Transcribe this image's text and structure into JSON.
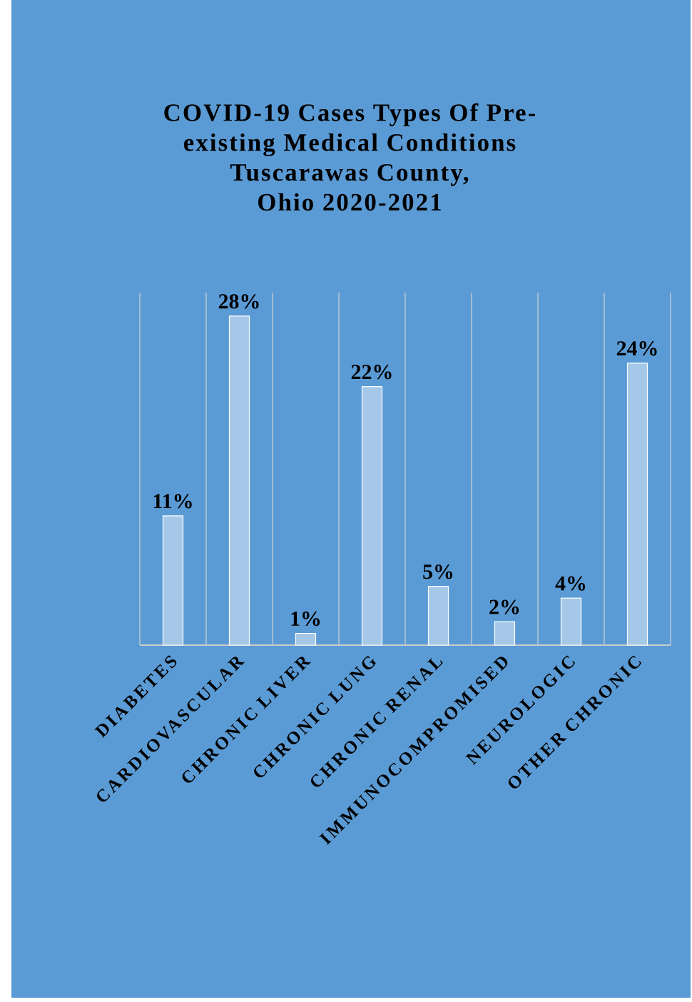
{
  "chart_data": {
    "type": "bar",
    "title": "COVID-19 Cases Types Of Pre-existing Medical Conditions",
    "subtitle": "Tuscarawas County, Ohio 2020-2021",
    "categories": [
      "DIABETES",
      "CARDIOVASCULAR",
      "CHRONIC LIVER",
      "CHRONIC LUNG",
      "CHRONIC RENAL",
      "IMMUNOCOMPROMISED",
      "NEUROLOGIC",
      "OTHER CHRONIC"
    ],
    "values": [
      11,
      28,
      1,
      22,
      5,
      2,
      4,
      24
    ],
    "value_labels": [
      "11%",
      "28%",
      "1%",
      "22%",
      "5%",
      "2%",
      "4%",
      "24%"
    ],
    "color": "#ffffff",
    "ylim": [
      0,
      30
    ],
    "tick_labels": "x",
    "grid": "x"
  }
}
